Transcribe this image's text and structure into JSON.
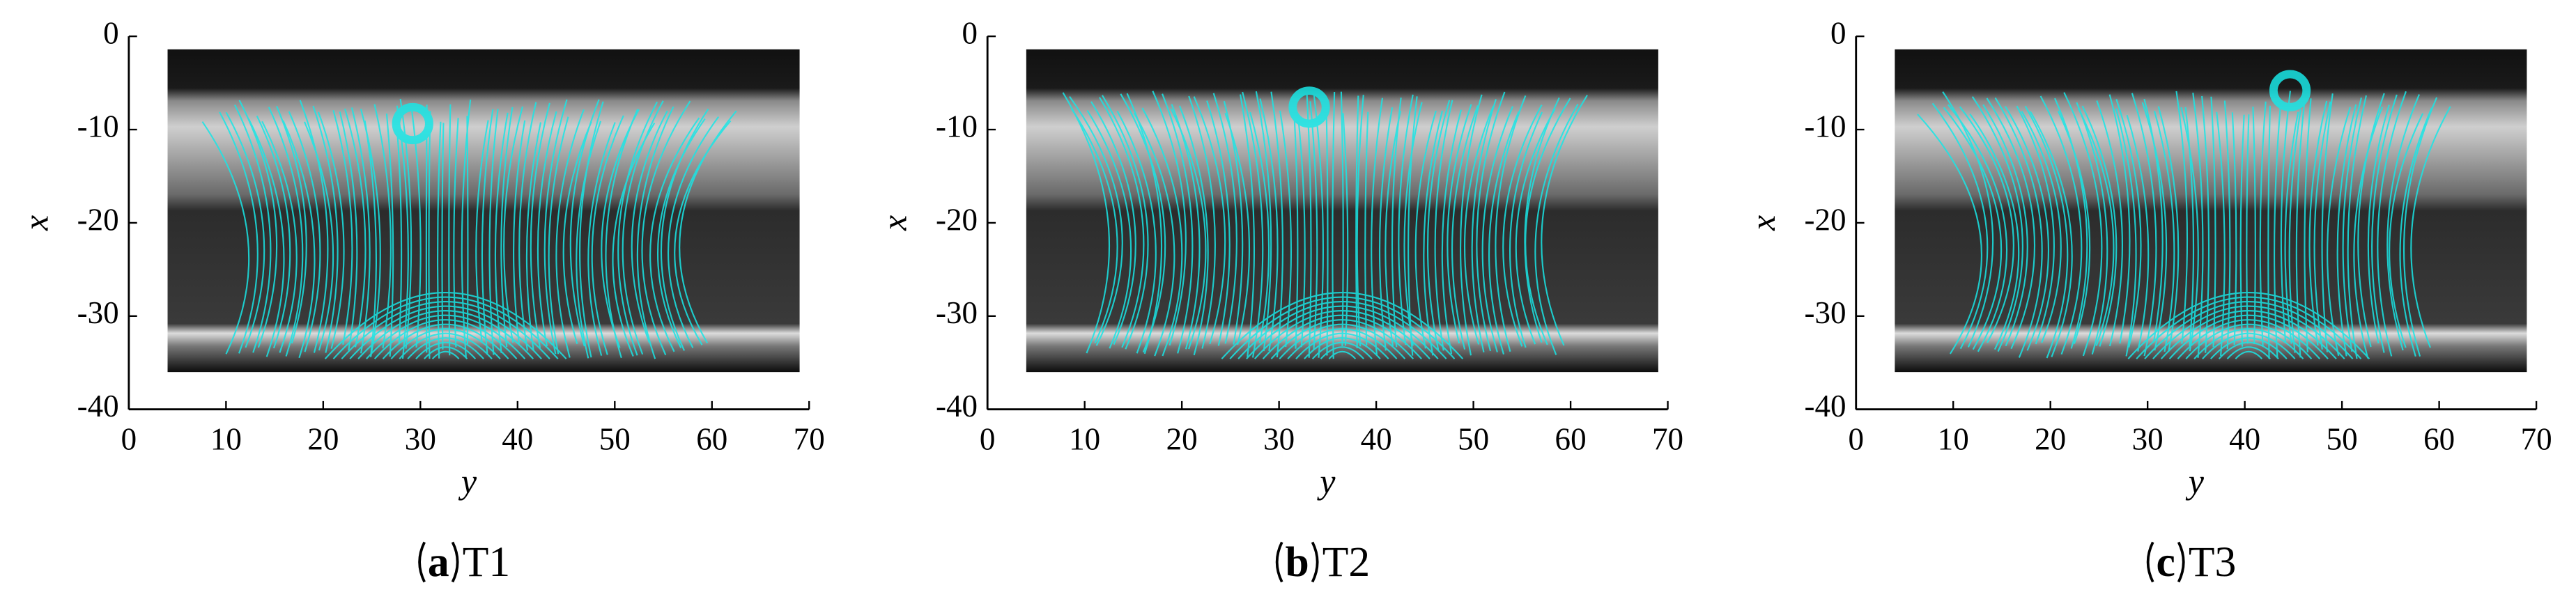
{
  "panels": [
    {
      "tag": "a",
      "name": "T1",
      "xlabel": "y",
      "ylabel": "x",
      "xlim": [
        0,
        70
      ],
      "ylim": [
        -40,
        0
      ],
      "xticks": [
        0,
        10,
        20,
        30,
        40,
        50,
        60,
        70
      ],
      "yticks": [
        0,
        -10,
        -20,
        -30,
        -40
      ]
    },
    {
      "tag": "b",
      "name": "T2",
      "xlabel": "y",
      "ylabel": "x",
      "xlim": [
        0,
        70
      ],
      "ylim": [
        -40,
        0
      ],
      "xticks": [
        0,
        10,
        20,
        30,
        40,
        50,
        60,
        70
      ],
      "yticks": [
        0,
        -10,
        -20,
        -30,
        -40
      ]
    },
    {
      "tag": "c",
      "name": "T3",
      "xlabel": "y",
      "ylabel": "x",
      "xlim": [
        0,
        70
      ],
      "ylim": [
        -40,
        0
      ],
      "xticks": [
        0,
        10,
        20,
        30,
        40,
        50,
        60,
        70
      ],
      "yticks": [
        0,
        -10,
        -20,
        -30,
        -40
      ]
    }
  ]
}
